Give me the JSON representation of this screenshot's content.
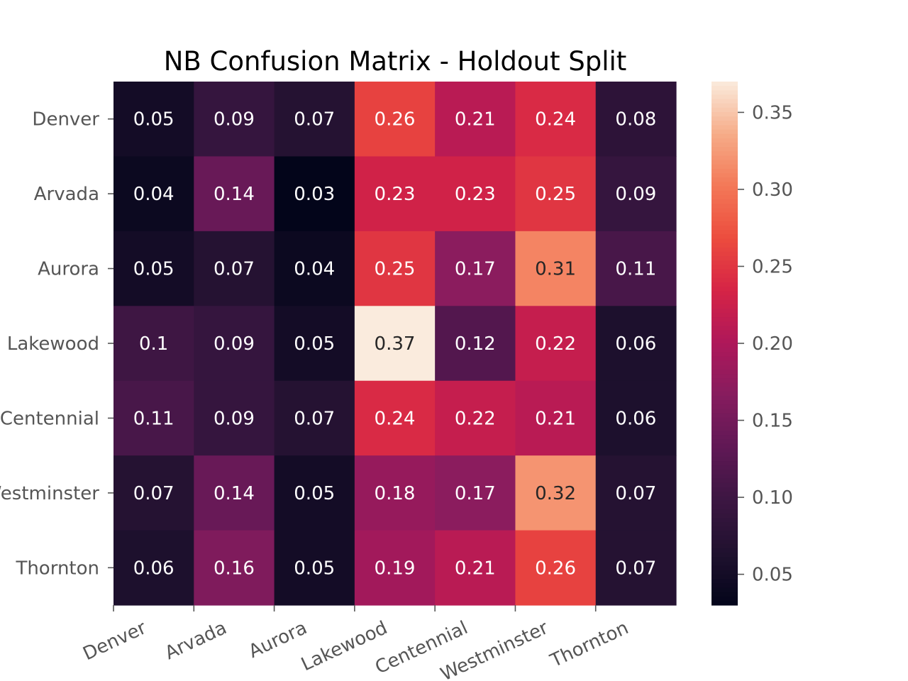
{
  "chart_data": {
    "type": "heatmap",
    "title": "NB Confusion Matrix - Holdout Split",
    "rows": [
      "Denver",
      "Arvada",
      "Aurora",
      "Lakewood",
      "Centennial",
      "Westminster",
      "Thornton"
    ],
    "columns": [
      "Denver",
      "Arvada",
      "Aurora",
      "Lakewood",
      "Centennial",
      "Westminster",
      "Thornton"
    ],
    "values": [
      [
        0.05,
        0.09,
        0.07,
        0.26,
        0.21,
        0.24,
        0.08
      ],
      [
        0.04,
        0.14,
        0.03,
        0.23,
        0.23,
        0.25,
        0.09
      ],
      [
        0.05,
        0.07,
        0.04,
        0.25,
        0.17,
        0.31,
        0.11
      ],
      [
        0.1,
        0.09,
        0.05,
        0.37,
        0.12,
        0.22,
        0.06
      ],
      [
        0.11,
        0.09,
        0.07,
        0.24,
        0.22,
        0.21,
        0.06
      ],
      [
        0.07,
        0.14,
        0.05,
        0.18,
        0.17,
        0.32,
        0.07
      ],
      [
        0.06,
        0.16,
        0.05,
        0.19,
        0.21,
        0.26,
        0.07
      ]
    ],
    "value_labels": [
      [
        "0.05",
        "0.09",
        "0.07",
        "0.26",
        "0.21",
        "0.24",
        "0.08"
      ],
      [
        "0.04",
        "0.14",
        "0.03",
        "0.23",
        "0.23",
        "0.25",
        "0.09"
      ],
      [
        "0.05",
        "0.07",
        "0.04",
        "0.25",
        "0.17",
        "0.31",
        "0.11"
      ],
      [
        "0.1",
        "0.09",
        "0.05",
        "0.37",
        "0.12",
        "0.22",
        "0.06"
      ],
      [
        "0.11",
        "0.09",
        "0.07",
        "0.24",
        "0.22",
        "0.21",
        "0.06"
      ],
      [
        "0.07",
        "0.14",
        "0.05",
        "0.18",
        "0.17",
        "0.32",
        "0.07"
      ],
      [
        "0.06",
        "0.16",
        "0.05",
        "0.19",
        "0.21",
        "0.26",
        "0.07"
      ]
    ],
    "colorbar": {
      "min": 0.03,
      "max": 0.37,
      "ticks": [
        0.05,
        0.1,
        0.15,
        0.2,
        0.25,
        0.3,
        0.35
      ],
      "tick_labels": [
        "0.05",
        "0.10",
        "0.15",
        "0.20",
        "0.25",
        "0.30",
        "0.35"
      ],
      "colormap": "rocket"
    },
    "xlabel": "",
    "ylabel": "",
    "grid": false
  }
}
